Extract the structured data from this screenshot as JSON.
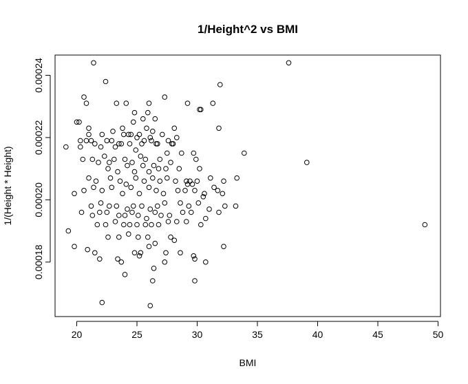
{
  "chart_data": {
    "type": "scatter",
    "title": "1/Height^2 vs BMI",
    "xlabel": "BMI",
    "ylabel": "1/(Height * Height)",
    "xlim": [
      18.2,
      50.2
    ],
    "ylim": [
      0.0001625,
      0.0002465
    ],
    "xticks": [
      20,
      25,
      30,
      35,
      40,
      45,
      50
    ],
    "yticks": [
      0.00018,
      0.0002,
      0.00022,
      0.00024
    ],
    "xtick_labels": [
      "20",
      "25",
      "30",
      "35",
      "40",
      "45",
      "50"
    ],
    "ytick_labels": [
      "0.00018",
      "0.00020",
      "0.00022",
      "0.00024"
    ],
    "grid": false,
    "legend": "none",
    "series": [
      {
        "x": [
          21.4,
          37.6,
          22.4,
          31.9,
          20.6,
          23.3,
          24.1,
          27.3,
          20.8,
          26.0,
          29.2,
          30.3,
          31.3,
          30.2,
          24.8,
          26.5,
          25.5,
          25.9,
          21.0,
          31.8,
          20.0,
          20.2,
          21.0,
          22.1,
          23.0,
          23.8,
          24.3,
          24.7,
          25.2,
          25.8,
          26.3,
          27.6,
          28.1,
          20.3,
          20.8,
          21.2,
          22.5,
          22.9,
          23.5,
          23.9,
          24.5,
          25.0,
          25.6,
          26.1,
          26.6,
          27.1,
          27.9,
          28.3,
          19.1,
          20.3,
          21.5,
          22.0,
          23.2,
          23.7,
          24.4,
          24.9,
          25.4,
          26.2,
          26.7,
          27.5,
          28.0,
          29.7,
          29.9,
          33.9,
          20.5,
          21.3,
          22.3,
          22.7,
          23.1,
          24.0,
          24.6,
          25.3,
          25.7,
          26.4,
          26.9,
          27.8,
          28.7,
          30.2,
          39.1,
          21.8,
          22.6,
          23.4,
          24.2,
          24.8,
          25.5,
          26.0,
          26.8,
          27.4,
          28.5,
          29.1,
          29.4,
          30.0,
          31.1,
          32.2,
          33.3,
          21.0,
          21.6,
          22.8,
          23.6,
          24.1,
          24.9,
          25.6,
          26.3,
          26.9,
          27.5,
          28.2,
          29.2,
          29.6,
          30.6,
          31.7,
          19.8,
          20.6,
          21.4,
          22.1,
          22.9,
          23.8,
          24.5,
          25.2,
          26.0,
          26.6,
          27.2,
          28.4,
          29.0,
          29.8,
          30.5,
          31.4,
          32.1,
          21.2,
          22.0,
          22.7,
          23.3,
          24.2,
          24.7,
          25.4,
          26.1,
          26.7,
          27.3,
          28.6,
          29.3,
          30.1,
          31.0,
          32.3,
          33.2,
          48.9,
          19.3,
          20.4,
          21.3,
          21.9,
          22.5,
          23.5,
          24.0,
          24.6,
          25.1,
          25.8,
          26.5,
          27.0,
          27.7,
          28.8,
          29.5,
          30.7,
          31.8,
          21.7,
          22.4,
          23.2,
          23.9,
          24.4,
          25.0,
          25.7,
          26.2,
          26.8,
          27.6,
          28.3,
          29.1,
          30.3,
          19.8,
          20.9,
          22.6,
          23.5,
          24.3,
          25.1,
          25.9,
          26.5,
          27.8,
          28.1,
          32.2,
          21.5,
          23.4,
          24.8,
          25.3,
          26.0,
          27.4,
          28.6,
          29.7,
          30.7,
          21.9,
          23.7,
          25.2,
          26.4,
          27.3,
          29.8,
          24.0,
          26.3,
          29.8,
          22.1,
          26.1
        ],
        "y": [
          0.000244,
          0.000244,
          0.000238,
          0.000237,
          0.000233,
          0.000231,
          0.000231,
          0.000233,
          0.000231,
          0.000231,
          0.000231,
          0.000229,
          0.000231,
          0.000229,
          0.000228,
          0.000226,
          0.000226,
          0.000228,
          0.000223,
          0.000223,
          0.000225,
          0.000225,
          0.000221,
          0.000221,
          0.000222,
          0.000223,
          0.000221,
          0.000225,
          0.000221,
          0.000223,
          0.000222,
          0.000219,
          0.000223,
          0.000219,
          0.000219,
          0.000219,
          0.000219,
          0.000219,
          0.000218,
          0.000221,
          0.000221,
          0.00022,
          0.000219,
          0.00022,
          0.000218,
          0.000221,
          0.000218,
          0.00022,
          0.000217,
          0.000217,
          0.000218,
          0.000217,
          0.000217,
          0.000218,
          0.000218,
          0.000216,
          0.000218,
          0.000219,
          0.000218,
          0.000215,
          0.000218,
          0.000215,
          0.000213,
          0.000215,
          0.000213,
          0.000213,
          0.000214,
          0.000212,
          0.000213,
          0.000213,
          0.000212,
          0.000214,
          0.000213,
          0.000211,
          0.000213,
          0.000212,
          0.000215,
          0.00021,
          0.000212,
          0.000212,
          0.00021,
          0.000209,
          0.000211,
          0.000209,
          0.000211,
          0.000209,
          0.00021,
          0.00021,
          0.00021,
          0.000206,
          0.000206,
          0.000206,
          0.000207,
          0.000206,
          0.000207,
          0.000207,
          0.000206,
          0.000207,
          0.000206,
          0.000205,
          0.000207,
          0.000206,
          0.000207,
          0.000206,
          0.000207,
          0.000206,
          0.000205,
          0.000205,
          0.000202,
          0.000203,
          0.000202,
          0.000203,
          0.000204,
          0.000203,
          0.000204,
          0.000202,
          0.000204,
          0.000202,
          0.000204,
          0.000203,
          0.000202,
          0.000203,
          0.000203,
          0.000203,
          0.000201,
          0.000204,
          0.000202,
          0.000198,
          0.000199,
          0.000198,
          0.000198,
          0.000197,
          0.000198,
          0.000198,
          0.000197,
          0.000198,
          0.000199,
          0.000199,
          0.000198,
          0.000199,
          0.000197,
          0.000198,
          0.000198,
          0.000192,
          0.00019,
          0.000196,
          0.000195,
          0.000196,
          0.000196,
          0.000195,
          0.000195,
          0.000196,
          0.000195,
          0.000194,
          0.000196,
          0.000195,
          0.000195,
          0.000196,
          0.000196,
          0.000194,
          0.000196,
          0.000192,
          0.000192,
          0.000193,
          0.000192,
          0.000192,
          0.000192,
          0.000192,
          0.000192,
          0.000192,
          0.000193,
          0.000193,
          0.000193,
          0.000192,
          0.000185,
          0.000184,
          0.000188,
          0.000188,
          0.000189,
          0.000188,
          0.000188,
          0.000186,
          0.000188,
          0.000187,
          0.000185,
          0.000183,
          0.000181,
          0.000183,
          0.000183,
          0.000185,
          0.000183,
          0.000183,
          0.000182,
          0.00018,
          0.000181,
          0.00018,
          0.000182,
          0.000178,
          0.00018,
          0.000181,
          0.000176,
          0.000174,
          0.000174,
          0.000167,
          0.000166
        ]
      }
    ]
  }
}
